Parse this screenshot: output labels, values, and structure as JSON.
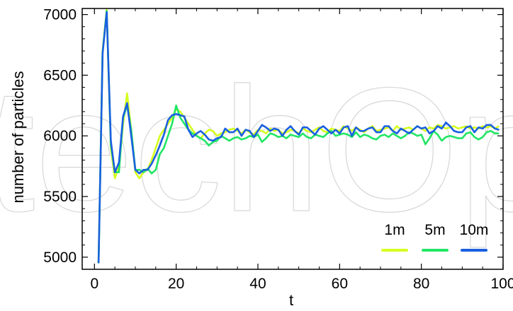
{
  "watermark": "techOpen",
  "chart_data": {
    "type": "line",
    "title": "",
    "xlabel": "t",
    "ylabel": "number of particles",
    "xlim": [
      -3,
      100
    ],
    "ylim": [
      4900,
      7050
    ],
    "xticks": [
      0,
      20,
      40,
      60,
      80,
      100
    ],
    "yticks": [
      5000,
      5500,
      6000,
      6500,
      7000
    ],
    "grid": false,
    "legend_position": "bottom-right",
    "x": [
      1,
      2,
      3,
      4,
      5,
      6,
      7,
      8,
      9,
      10,
      11,
      12,
      13,
      14,
      15,
      16,
      17,
      18,
      19,
      20,
      21,
      22,
      23,
      24,
      25,
      26,
      27,
      28,
      29,
      30,
      31,
      32,
      33,
      34,
      35,
      36,
      37,
      38,
      39,
      40,
      41,
      42,
      43,
      44,
      45,
      46,
      47,
      48,
      49,
      50,
      51,
      52,
      53,
      54,
      55,
      56,
      57,
      58,
      59,
      60,
      61,
      62,
      63,
      64,
      65,
      66,
      67,
      68,
      69,
      70,
      71,
      72,
      73,
      74,
      75,
      76,
      77,
      78,
      79,
      80,
      81,
      82,
      83,
      84,
      85,
      86,
      87,
      88,
      89,
      90,
      91,
      92,
      93,
      94,
      95,
      96,
      97,
      98,
      99
    ],
    "series": [
      {
        "name": "1m",
        "color": "#d4ff1f",
        "values": [
          4950,
          6700,
          7040,
          5900,
          5650,
          5750,
          6100,
          6350,
          6050,
          5700,
          5650,
          5700,
          5720,
          5800,
          5900,
          6000,
          6050,
          6100,
          6150,
          6220,
          6200,
          6150,
          6100,
          6050,
          6000,
          5980,
          6020,
          6050,
          6040,
          6000,
          6020,
          6030,
          6050,
          6060,
          6040,
          6020,
          6050,
          6030,
          6010,
          6050,
          6040,
          6020,
          6060,
          6040,
          6050,
          6020,
          6030,
          6050,
          6040,
          6020,
          6060,
          6040,
          6030,
          6050,
          6070,
          6040,
          6030,
          6060,
          6050,
          6040,
          6080,
          6060,
          6040,
          6070,
          6050,
          6030,
          6060,
          6080,
          6040,
          6050,
          6060,
          6070,
          6040,
          6080,
          6050,
          6060,
          6070,
          6050,
          6080,
          6060,
          6040,
          6070,
          6060,
          6090,
          6080,
          6060,
          6070,
          6080,
          6060,
          6070,
          6080,
          6060,
          6070,
          6060,
          6080,
          6070,
          6080,
          6060,
          6080
        ]
      },
      {
        "name": "5m",
        "color": "#22e665",
        "values": [
          4950,
          6690,
          7030,
          5930,
          5700,
          5700,
          6150,
          6250,
          6050,
          5720,
          5720,
          5700,
          5730,
          5690,
          5720,
          5850,
          5900,
          6000,
          6100,
          6250,
          6150,
          6100,
          6050,
          6020,
          6000,
          5980,
          5960,
          5920,
          5950,
          5960,
          6000,
          5980,
          5960,
          5980,
          5990,
          5970,
          5980,
          6000,
          5990,
          6010,
          5950,
          5980,
          6020,
          6010,
          5990,
          6000,
          5980,
          6010,
          6000,
          5990,
          6020,
          5990,
          5980,
          6010,
          6000,
          5990,
          6020,
          6040,
          6000,
          6010,
          6020,
          6010,
          5990,
          6030,
          5990,
          6010,
          6000,
          5980,
          5970,
          6000,
          6010,
          5990,
          6020,
          6000,
          5980,
          6000,
          6030,
          6020,
          6000,
          6010,
          5930,
          5980,
          6040,
          6010,
          5960,
          5990,
          6000,
          5990,
          5980,
          5980,
          6020,
          6030,
          5990,
          5970,
          5990,
          6030,
          6040,
          6020,
          6020
        ]
      },
      {
        "name": "10m",
        "color": "#1a5fe0",
        "values": [
          4950,
          6680,
          7020,
          5960,
          5700,
          5780,
          6160,
          6270,
          6000,
          5720,
          5690,
          5720,
          5720,
          5770,
          5840,
          5920,
          6010,
          6130,
          6170,
          6180,
          6170,
          6160,
          6050,
          5990,
          6020,
          6040,
          6010,
          5970,
          5960,
          5980,
          5990,
          6060,
          6030,
          6030,
          6060,
          6000,
          6050,
          6040,
          5990,
          6040,
          6090,
          6070,
          6040,
          6060,
          6050,
          6000,
          6050,
          6080,
          6040,
          6010,
          6070,
          6070,
          6040,
          6010,
          6060,
          6080,
          6050,
          6020,
          6050,
          6020,
          6070,
          6080,
          6000,
          6070,
          6040,
          6040,
          6060,
          6070,
          6030,
          6030,
          6080,
          6080,
          6040,
          6020,
          6060,
          6040,
          6020,
          6050,
          6080,
          6060,
          6070,
          6020,
          6040,
          6080,
          6060,
          6110,
          6080,
          6040,
          6030,
          6030,
          6070,
          6080,
          6030,
          6070,
          6060,
          6090,
          6090,
          6060,
          6050
        ]
      }
    ]
  }
}
